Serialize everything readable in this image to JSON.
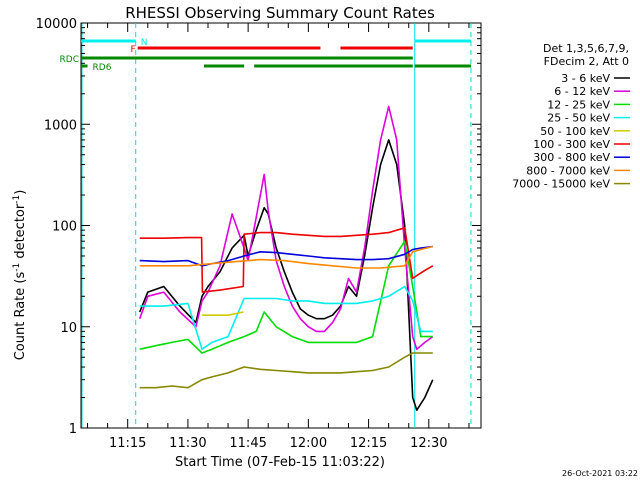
{
  "chart_data": {
    "type": "line",
    "title": "RHESSI Observing Summary Count Rates",
    "xlabel": "Start Time (07-Feb-15 11:03:22)",
    "ylabel": "Count Rate (s",
    "ylabel_sup1": "-1",
    "ylabel_mid": " detector",
    "ylabel_sup2": "-1",
    "ylabel_end": ")",
    "footer": "26-Oct-2021 03:22",
    "x_ticks": [
      "11:15",
      "11:30",
      "11:45",
      "12:00",
      "12:15",
      "12:30"
    ],
    "x_tick_minutes": [
      15,
      30,
      45,
      60,
      75,
      90
    ],
    "xlim_minutes": [
      3.37,
      103
    ],
    "y_scale": "log",
    "y_ticks": [
      "1",
      "10",
      "100",
      "1000",
      "10000"
    ],
    "y_tick_values": [
      1,
      10,
      100,
      1000,
      10000
    ],
    "ylim": [
      1,
      10000
    ],
    "legend_header": [
      "Det 1,3,5,6,7,9,",
      "FDecim 2, Att 0"
    ],
    "legend": [
      {
        "label": "3 - 6 keV",
        "color": "#000000"
      },
      {
        "label": "6 - 12 keV",
        "color": "#dd00dd"
      },
      {
        "label": "12 - 25 keV",
        "color": "#00dd00"
      },
      {
        "label": "25 - 50 keV",
        "color": "#00eeee"
      },
      {
        "label": "50 - 100 keV",
        "color": "#cccc00"
      },
      {
        "label": "100 - 300 keV",
        "color": "#ee0000"
      },
      {
        "label": "300 - 800 keV",
        "color": "#0000dd"
      },
      {
        "label": "800 - 7000 keV",
        "color": "#ff8800"
      },
      {
        "label": "7000 - 15000 keV",
        "color": "#888800"
      }
    ],
    "flags": {
      "N": {
        "label": "N",
        "color": "#00eeee",
        "segments": [
          [
            3.4,
            17
          ],
          [
            86.5,
            100.5
          ]
        ]
      },
      "F": {
        "label": "F",
        "color": "#ee0000",
        "segments": [
          [
            17.5,
            63
          ],
          [
            68,
            86
          ]
        ]
      },
      "RDC": {
        "label": "RDC",
        "color": "#008800",
        "segments": [
          [
            3.4,
            86
          ]
        ]
      },
      "RD6": {
        "label": "RD6",
        "color": "#008800",
        "segments": [
          [
            3.4,
            5
          ],
          [
            34,
            44
          ],
          [
            46.5,
            86
          ],
          [
            86.5,
            100.5
          ]
        ]
      }
    },
    "night_boundaries_minutes": [
      17,
      86.5,
      100.5
    ],
    "series": [
      {
        "name": "3 - 6 keV",
        "color": "#000000",
        "x": [
          18,
          20,
          24,
          28,
          32,
          33.5,
          35,
          38,
          41,
          44,
          45,
          47,
          49,
          50,
          52,
          54,
          56,
          58,
          60,
          62,
          64,
          66,
          68,
          70,
          72,
          74,
          76,
          78,
          80,
          82,
          84,
          86,
          87,
          89,
          91
        ],
        "y": [
          14,
          22,
          25,
          16,
          11,
          20,
          25,
          35,
          60,
          80,
          50,
          90,
          150,
          130,
          60,
          35,
          22,
          15,
          13,
          12,
          12,
          13,
          16,
          25,
          20,
          50,
          150,
          400,
          700,
          400,
          100,
          2,
          1.5,
          2,
          3
        ]
      },
      {
        "name": "6 - 12 keV",
        "color": "#dd00dd",
        "x": [
          18,
          20,
          24,
          28,
          32,
          33.5,
          35,
          38,
          41,
          44,
          45,
          47,
          49,
          50,
          52,
          54,
          56,
          58,
          60,
          62,
          64,
          66,
          68,
          70,
          72,
          74,
          76,
          78,
          80,
          82,
          84,
          86,
          87,
          89,
          91
        ],
        "y": [
          12,
          20,
          22,
          14,
          10,
          18,
          22,
          40,
          130,
          60,
          45,
          120,
          320,
          140,
          45,
          25,
          16,
          12,
          10,
          9,
          9,
          11,
          15,
          30,
          22,
          60,
          220,
          700,
          1500,
          700,
          60,
          8,
          6,
          7,
          8
        ]
      },
      {
        "name": "12 - 25 keV",
        "color": "#00dd00",
        "x": [
          18,
          22,
          26,
          30,
          33.5,
          36,
          40,
          44,
          47,
          49,
          52,
          56,
          60,
          64,
          68,
          72,
          76,
          80,
          84,
          86,
          88,
          91
        ],
        "y": [
          6,
          6.5,
          7,
          7.5,
          5.5,
          6,
          7,
          8,
          9,
          14,
          10,
          8,
          7,
          7,
          7,
          7,
          8,
          40,
          70,
          25,
          8,
          8
        ]
      },
      {
        "name": "25 - 50 keV",
        "color": "#00eeee",
        "x": [
          18,
          24,
          30,
          33.5,
          36,
          40,
          44,
          48,
          52,
          56,
          60,
          64,
          68,
          72,
          76,
          80,
          84,
          86,
          88,
          91
        ],
        "y": [
          16,
          16,
          17,
          6,
          7,
          8,
          19,
          19,
          19,
          18,
          18,
          17,
          17,
          17,
          18,
          20,
          25,
          18,
          9,
          9
        ]
      },
      {
        "name": "50 - 100 keV",
        "color": "#cccc00",
        "x": [
          33.5,
          36,
          40,
          43.8
        ],
        "y": [
          13,
          13,
          13,
          14
        ]
      },
      {
        "name": "100 - 300 keV",
        "color": "#ee0000",
        "x": [
          18,
          24,
          30,
          33.4,
          33.6,
          38,
          43.8,
          44,
          48,
          52,
          56,
          60,
          64,
          68,
          72,
          76,
          80,
          84,
          86,
          87,
          89,
          91
        ],
        "y": [
          75,
          75,
          76,
          76,
          22,
          23,
          25,
          82,
          85,
          85,
          82,
          80,
          78,
          78,
          80,
          82,
          85,
          95,
          30,
          32,
          36,
          40
        ]
      },
      {
        "name": "300 - 800 keV",
        "color": "#0000dd",
        "x": [
          18,
          24,
          30,
          33.5,
          36,
          40,
          44,
          48,
          52,
          56,
          60,
          64,
          68,
          72,
          76,
          80,
          84,
          86,
          88,
          91
        ],
        "y": [
          45,
          44,
          45,
          40,
          42,
          45,
          50,
          55,
          54,
          52,
          50,
          48,
          47,
          46,
          46,
          47,
          52,
          58,
          60,
          62
        ]
      },
      {
        "name": "800 - 7000 keV",
        "color": "#ff8800",
        "x": [
          18,
          24,
          30,
          36,
          42,
          48,
          54,
          60,
          66,
          72,
          78,
          84,
          86,
          88,
          91
        ],
        "y": [
          40,
          40,
          40,
          42,
          44,
          46,
          45,
          42,
          40,
          38,
          38,
          40,
          55,
          58,
          62
        ]
      },
      {
        "name": "7000 - 15000 keV",
        "color": "#888800",
        "x": [
          18,
          22,
          26,
          30,
          33.5,
          36,
          40,
          44,
          48,
          52,
          56,
          60,
          64,
          68,
          72,
          76,
          80,
          84,
          86,
          88,
          91
        ],
        "y": [
          2.5,
          2.5,
          2.6,
          2.5,
          3,
          3.2,
          3.5,
          4,
          3.8,
          3.7,
          3.6,
          3.5,
          3.5,
          3.5,
          3.6,
          3.7,
          4,
          5,
          5.5,
          5.5,
          5.5
        ]
      }
    ]
  }
}
